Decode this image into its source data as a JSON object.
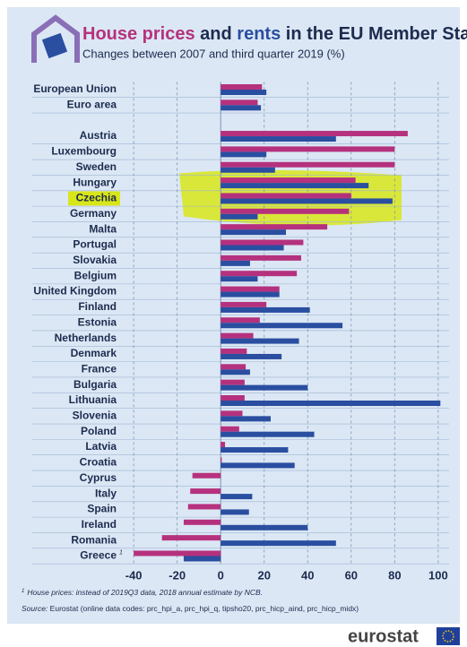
{
  "chart_data": {
    "type": "bar",
    "orientation": "horizontal",
    "title_joiner": "and",
    "title_rest": "in the EU Member States",
    "subtitle": "Changes between 2007 and third quarter 2019 (%)",
    "categories": [
      "European Union",
      "Euro area",
      null,
      "Austria",
      "Luxembourg",
      "Sweden",
      "Hungary",
      "Czechia",
      "Germany",
      "Malta",
      "Portugal",
      "Slovakia",
      "Belgium",
      "United Kingdom",
      "Finland",
      "Estonia",
      "Netherlands",
      "Denmark",
      "France",
      "Bulgaria",
      "Lithuania",
      "Slovenia",
      "Poland",
      "Latvia",
      "Croatia",
      "Cyprus",
      "Italy",
      "Spain",
      "Ireland",
      "Romania",
      "Greece"
    ],
    "series": [
      {
        "name": "House prices",
        "color": "#b5317e",
        "values": [
          19,
          17,
          null,
          86,
          80,
          80,
          62,
          60,
          59,
          49,
          38,
          37,
          35,
          27,
          21,
          18,
          15,
          12,
          11.5,
          11,
          11,
          10,
          8.5,
          2,
          0.5,
          -13,
          -14,
          -15,
          -17,
          -27,
          -40
        ]
      },
      {
        "name": "rents",
        "color": "#2a4ea0",
        "values": [
          21,
          18.5,
          null,
          53,
          21,
          25,
          68,
          79,
          17,
          30,
          29,
          13.5,
          17,
          27,
          41,
          56,
          36,
          28,
          13.5,
          40,
          101,
          23,
          43,
          31,
          34,
          null,
          14.5,
          13,
          40,
          53,
          -17
        ]
      }
    ],
    "xlim": [
      -45,
      105
    ],
    "xticks": [
      -40,
      -20,
      0,
      20,
      40,
      60,
      80,
      100
    ],
    "grid": true,
    "highlight": "Czechia",
    "highlight_color": "#d8e619",
    "footnote_marker": "1",
    "footnote": "House prices: instead of 2019Q3 data, 2018 annual estimate by NCB.",
    "source_label": "Source:",
    "source": "Eurostat (online data codes: prc_hpi_a, prc_hpi_q, tipsho20, prc_hicp_aind, prc_hicp_midx)",
    "brand": "eurostat"
  }
}
